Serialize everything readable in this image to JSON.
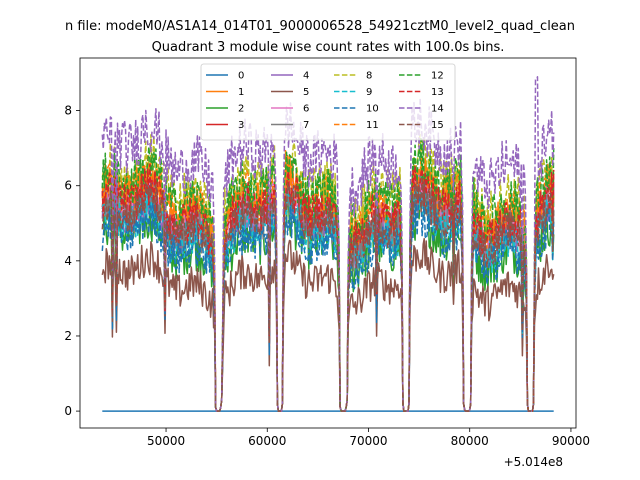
{
  "figure": {
    "suptitle": "n file: modeM0/AS1A14_014T01_9000006528_54921cztM0_level2_quad_clean",
    "background": "#ffffff"
  },
  "chart_data": {
    "type": "line",
    "title": "Quadrant 3 module wise count rates with 100.0s bins.",
    "xlabel": "",
    "ylabel": "",
    "x_offset_label": "+5.014e8",
    "xlim": [
      41500,
      90500
    ],
    "ylim": [
      -0.45,
      9.4
    ],
    "x_ticks": [
      50000,
      60000,
      70000,
      80000,
      90000
    ],
    "x_tick_labels": [
      "50000",
      "60000",
      "70000",
      "80000",
      "90000"
    ],
    "y_ticks": [
      0,
      2,
      4,
      6,
      8
    ],
    "y_tick_labels": [
      "0",
      "2",
      "4",
      "6",
      "8"
    ],
    "x_start": 43700,
    "x_end": 88300,
    "bin_size": 100,
    "gaps": [
      {
        "start": 54900,
        "end": 55500,
        "dip_center": 55150
      },
      {
        "start": 61000,
        "end": 61500,
        "dip_center": 61250
      },
      {
        "start": 67200,
        "end": 67900,
        "dip_center": 67500
      },
      {
        "start": 73400,
        "end": 74000,
        "dip_center": 73700
      },
      {
        "start": 79400,
        "end": 80100,
        "dip_center": 79750
      },
      {
        "start": 85700,
        "end": 86300,
        "dip_center": 86000
      }
    ],
    "dips": [
      {
        "x": 44700,
        "depth": 0.45
      },
      {
        "x": 45100,
        "depth": 0.55
      },
      {
        "x": 49900,
        "depth": 0.55
      },
      {
        "x": 55600,
        "depth": 0.4
      },
      {
        "x": 60200,
        "depth": 0.35
      },
      {
        "x": 70800,
        "depth": 0.6
      },
      {
        "x": 78400,
        "depth": 0.75
      },
      {
        "x": 85200,
        "depth": 0.5
      },
      {
        "x": 88200,
        "depth": 0.8
      }
    ],
    "legend": {
      "location": "upper center",
      "columns": 4
    },
    "series": [
      {
        "name": "0",
        "color": "#1f77b4",
        "dash": "solid",
        "mean": 0.0,
        "noise": 0.0
      },
      {
        "name": "1",
        "color": "#ff7f0e",
        "dash": "solid",
        "mean": 5.5,
        "noise": 0.35
      },
      {
        "name": "2",
        "color": "#2ca02c",
        "dash": "solid",
        "mean": 4.5,
        "noise": 0.4
      },
      {
        "name": "3",
        "color": "#d62728",
        "dash": "solid",
        "mean": 5.2,
        "noise": 0.35
      },
      {
        "name": "4",
        "color": "#9467bd",
        "dash": "solid",
        "mean": 5.0,
        "noise": 0.3
      },
      {
        "name": "5",
        "color": "#8c564b",
        "dash": "solid",
        "mean": 3.5,
        "noise": 0.3
      },
      {
        "name": "6",
        "color": "#e377c2",
        "dash": "solid",
        "mean": 5.2,
        "noise": 0.3
      },
      {
        "name": "7",
        "color": "#7f7f7f",
        "dash": "solid",
        "mean": 5.0,
        "noise": 0.35
      },
      {
        "name": "8",
        "color": "#bcbd22",
        "dash": "dashed",
        "mean": 6.0,
        "noise": 0.4
      },
      {
        "name": "9",
        "color": "#17becf",
        "dash": "dashed",
        "mean": 4.8,
        "noise": 0.35
      },
      {
        "name": "10",
        "color": "#1f77b4",
        "dash": "dashed",
        "mean": 4.5,
        "noise": 0.35
      },
      {
        "name": "11",
        "color": "#ff7f0e",
        "dash": "dashed",
        "mean": 5.6,
        "noise": 0.35
      },
      {
        "name": "12",
        "color": "#2ca02c",
        "dash": "dashed",
        "mean": 5.8,
        "noise": 0.4
      },
      {
        "name": "13",
        "color": "#d62728",
        "dash": "dashed",
        "mean": 5.3,
        "noise": 0.35
      },
      {
        "name": "14",
        "color": "#9467bd",
        "dash": "dashed",
        "mean": 6.8,
        "noise": 0.45
      },
      {
        "name": "15",
        "color": "#8c564b",
        "dash": "dashed",
        "mean": 5.0,
        "noise": 0.3
      }
    ]
  }
}
